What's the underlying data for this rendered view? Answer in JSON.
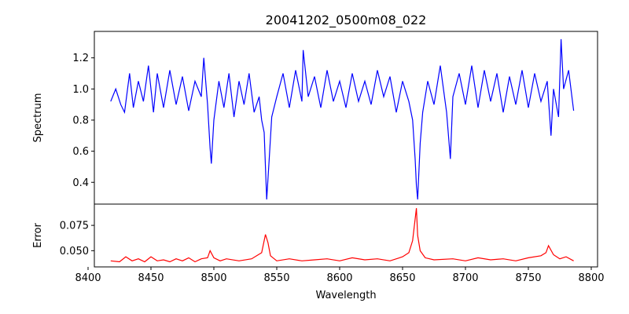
{
  "chart_data": {
    "type": "line",
    "title": "20041202_0500m08_022",
    "xlabel": "Wavelength",
    "xlim": [
      8405,
      8805
    ],
    "x_ticks": [
      8400,
      8450,
      8500,
      8550,
      8600,
      8650,
      8700,
      8750,
      8800
    ],
    "x_tick_labels": [
      "8400",
      "8450",
      "8500",
      "8550",
      "8600",
      "8650",
      "8700",
      "8750",
      "8800"
    ],
    "panels": [
      {
        "name": "spectrum",
        "ylabel": "Spectrum",
        "ylim": [
          0.26,
          1.37
        ],
        "y_ticks": [
          0.4,
          0.6,
          0.8,
          1.0,
          1.2
        ],
        "y_tick_labels": [
          "0.4",
          "0.6",
          "0.8",
          "1.0",
          "1.2"
        ],
        "color": "#0000ff",
        "x": [
          8418,
          8422,
          8426,
          8429,
          8433,
          8436,
          8440,
          8444,
          8448,
          8452,
          8455,
          8460,
          8465,
          8470,
          8475,
          8480,
          8485,
          8490,
          8492,
          8495,
          8497,
          8498,
          8500,
          8504,
          8508,
          8512,
          8516,
          8520,
          8524,
          8528,
          8532,
          8536,
          8538,
          8540,
          8541,
          8542,
          8544,
          8546,
          8550,
          8555,
          8560,
          8565,
          8570,
          8571,
          8575,
          8580,
          8585,
          8590,
          8595,
          8600,
          8605,
          8610,
          8615,
          8620,
          8625,
          8630,
          8635,
          8640,
          8645,
          8650,
          8655,
          8658,
          8660,
          8661,
          8662,
          8664,
          8666,
          8670,
          8675,
          8680,
          8685,
          8688,
          8690,
          8695,
          8700,
          8705,
          8710,
          8715,
          8720,
          8725,
          8730,
          8735,
          8740,
          8745,
          8750,
          8755,
          8760,
          8765,
          8768,
          8770,
          8774,
          8776,
          8778,
          8782,
          8786
        ],
        "y": [
          0.92,
          1.0,
          0.9,
          0.85,
          1.1,
          0.88,
          1.05,
          0.92,
          1.15,
          0.85,
          1.1,
          0.88,
          1.12,
          0.9,
          1.08,
          0.86,
          1.05,
          0.95,
          1.2,
          0.9,
          0.62,
          0.52,
          0.8,
          1.05,
          0.88,
          1.1,
          0.82,
          1.05,
          0.9,
          1.1,
          0.85,
          0.95,
          0.8,
          0.72,
          0.5,
          0.29,
          0.55,
          0.82,
          0.95,
          1.1,
          0.88,
          1.12,
          0.92,
          1.25,
          0.95,
          1.08,
          0.88,
          1.12,
          0.92,
          1.05,
          0.88,
          1.1,
          0.92,
          1.05,
          0.9,
          1.12,
          0.95,
          1.08,
          0.85,
          1.05,
          0.92,
          0.8,
          0.55,
          0.38,
          0.29,
          0.65,
          0.85,
          1.05,
          0.9,
          1.15,
          0.85,
          0.55,
          0.95,
          1.1,
          0.9,
          1.15,
          0.88,
          1.12,
          0.92,
          1.1,
          0.85,
          1.08,
          0.9,
          1.12,
          0.88,
          1.1,
          0.92,
          1.05,
          0.7,
          1.0,
          0.82,
          1.32,
          1.0,
          1.12,
          0.86
        ]
      },
      {
        "name": "error",
        "ylabel": "Error",
        "ylim": [
          0.034,
          0.096
        ],
        "y_ticks": [
          0.05,
          0.075
        ],
        "y_tick_labels": [
          "0.050",
          "0.075"
        ],
        "color": "#ff0000",
        "x": [
          8418,
          8425,
          8430,
          8435,
          8440,
          8445,
          8450,
          8455,
          8460,
          8465,
          8470,
          8475,
          8480,
          8485,
          8490,
          8495,
          8497,
          8500,
          8505,
          8510,
          8520,
          8530,
          8538,
          8541,
          8543,
          8545,
          8550,
          8560,
          8570,
          8580,
          8590,
          8600,
          8610,
          8620,
          8630,
          8640,
          8650,
          8655,
          8658,
          8661,
          8662,
          8664,
          8668,
          8675,
          8690,
          8700,
          8710,
          8720,
          8730,
          8740,
          8750,
          8760,
          8764,
          8766,
          8770,
          8775,
          8780,
          8786
        ],
        "y": [
          0.04,
          0.039,
          0.044,
          0.04,
          0.042,
          0.039,
          0.044,
          0.04,
          0.041,
          0.039,
          0.042,
          0.04,
          0.043,
          0.039,
          0.042,
          0.043,
          0.05,
          0.043,
          0.04,
          0.042,
          0.04,
          0.042,
          0.048,
          0.066,
          0.058,
          0.045,
          0.04,
          0.042,
          0.04,
          0.041,
          0.042,
          0.04,
          0.043,
          0.041,
          0.042,
          0.04,
          0.044,
          0.048,
          0.06,
          0.092,
          0.065,
          0.05,
          0.043,
          0.041,
          0.042,
          0.04,
          0.043,
          0.041,
          0.042,
          0.04,
          0.043,
          0.045,
          0.048,
          0.055,
          0.046,
          0.042,
          0.044,
          0.04
        ]
      }
    ]
  }
}
